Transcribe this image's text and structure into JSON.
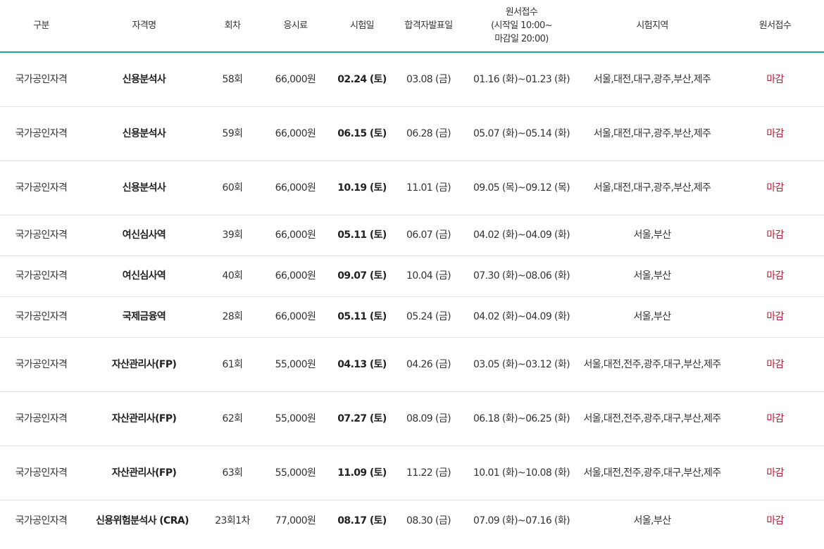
{
  "headers": {
    "type": "구분",
    "name": "자격명",
    "round": "회차",
    "fee": "응시료",
    "exam_date": "시험일",
    "result_date": "합격자발표일",
    "period_title": "원서접수",
    "period_sub1": "(시작일 10:00~",
    "period_sub2": "마감일 20:00)",
    "region": "시험지역",
    "apply": "원서접수"
  },
  "rows": [
    {
      "type": "국가공인자격",
      "name": "신용분석사",
      "round": "58회",
      "fee": "66,000원",
      "exam_date": "02.24 (토)",
      "result_date": "03.08 (금)",
      "period": "01.16 (화)~01.23 (화)",
      "region": "서울,대전,대구,광주,부산,제주",
      "status": "마감"
    },
    {
      "type": "국가공인자격",
      "name": "신용분석사",
      "round": "59회",
      "fee": "66,000원",
      "exam_date": "06.15 (토)",
      "result_date": "06.28 (금)",
      "period": "05.07 (화)~05.14 (화)",
      "region": "서울,대전,대구,광주,부산,제주",
      "status": "마감"
    },
    {
      "type": "국가공인자격",
      "name": "신용분석사",
      "round": "60회",
      "fee": "66,000원",
      "exam_date": "10.19 (토)",
      "result_date": "11.01 (금)",
      "period": "09.05 (목)~09.12 (목)",
      "region": "서울,대전,대구,광주,부산,제주",
      "status": "마감"
    },
    {
      "type": "국가공인자격",
      "name": "여신심사역",
      "round": "39회",
      "fee": "66,000원",
      "exam_date": "05.11 (토)",
      "result_date": "06.07 (금)",
      "period": "04.02 (화)~04.09 (화)",
      "region": "서울,부산",
      "status": "마감"
    },
    {
      "type": "국가공인자격",
      "name": "여신심사역",
      "round": "40회",
      "fee": "66,000원",
      "exam_date": "09.07 (토)",
      "result_date": "10.04 (금)",
      "period": "07.30 (화)~08.06 (화)",
      "region": "서울,부산",
      "status": "마감"
    },
    {
      "type": "국가공인자격",
      "name": "국제금융역",
      "round": "28회",
      "fee": "66,000원",
      "exam_date": "05.11 (토)",
      "result_date": "05.24 (금)",
      "period": "04.02 (화)~04.09 (화)",
      "region": "서울,부산",
      "status": "마감"
    },
    {
      "type": "국가공인자격",
      "name": "자산관리사(FP)",
      "round": "61회",
      "fee": "55,000원",
      "exam_date": "04.13 (토)",
      "result_date": "04.26 (금)",
      "period": "03.05 (화)~03.12 (화)",
      "region": "서울,대전,전주,광주,대구,부산,제주",
      "status": "마감"
    },
    {
      "type": "국가공인자격",
      "name": "자산관리사(FP)",
      "round": "62회",
      "fee": "55,000원",
      "exam_date": "07.27 (토)",
      "result_date": "08.09 (금)",
      "period": "06.18 (화)~06.25 (화)",
      "region": "서울,대전,전주,광주,대구,부산,제주",
      "status": "마감"
    },
    {
      "type": "국가공인자격",
      "name": "자산관리사(FP)",
      "round": "63회",
      "fee": "55,000원",
      "exam_date": "11.09 (토)",
      "result_date": "11.22 (금)",
      "period": "10.01 (화)~10.08 (화)",
      "region": "서울,대전,전주,광주,대구,부산,제주",
      "status": "마감"
    },
    {
      "type": "국가공인자격",
      "name": "신용위험분석사 (CRA)",
      "round": "23회1차",
      "fee": "77,000원",
      "exam_date": "08.17 (토)",
      "result_date": "08.30 (금)",
      "period": "07.09 (화)~07.16 (화)",
      "region": "서울,부산",
      "status": "마감"
    }
  ]
}
